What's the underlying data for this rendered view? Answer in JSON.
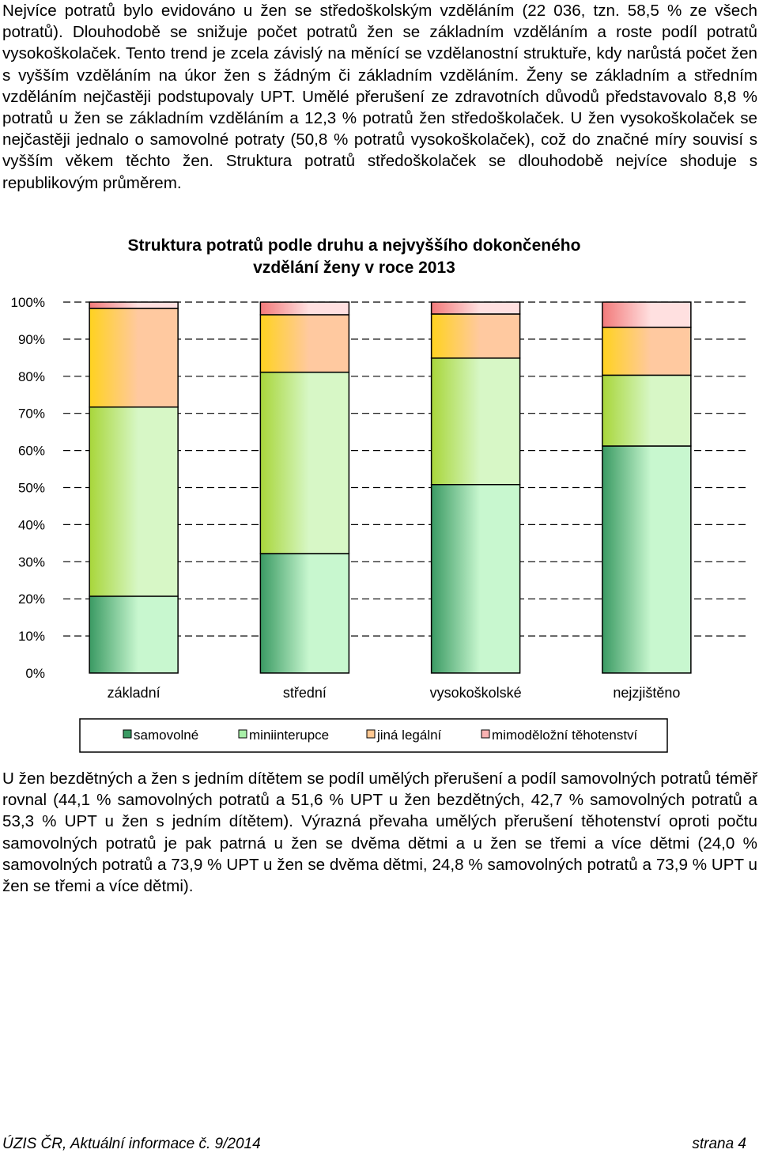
{
  "paragraphs": {
    "top": "Nejvíce potratů bylo evidováno u žen se středoškolským vzděláním (22 036, tzn. 58,5 % ze všech potratů). Dlouhodobě se snižuje počet potratů žen se základním vzděláním a roste podíl potratů vysokoškolaček. Tento trend je zcela závislý na měnící se vzdělanostní struktuře, kdy narůstá počet žen s vyšším vzděláním na úkor žen s žádným či základním vzděláním. Ženy se základním a středním vzděláním nejčastěji podstupovaly UPT. Umělé přerušení ze zdravotních důvodů představovalo 8,8 % potratů u žen se základním vzděláním a 12,3 % potratů žen středoškolaček. U žen vysokoškolaček se nejčastěji jednalo o samovolné potraty (50,8 % potratů vysokoškolaček), což do značné míry souvisí s vyšším věkem těchto žen. Struktura potratů středoškolaček se dlouhodobě nejvíce shoduje s republikovým průměrem.",
    "bottom": "U žen bezdětných a žen s jedním dítětem se podíl umělých přerušení a podíl samovolných potratů téměř rovnal (44,1 % samovolných potratů a 51,6 % UPT u žen bezdětných, 42,7 % samovolných potratů a 53,3 % UPT u žen s jedním dítětem). Výrazná převaha umělých přerušení těhotenství oproti počtu samovolných potratů je pak patrná u žen se dvěma dětmi a u žen se třemi a více dětmi (24,0 % samovolných potratů a 73,9 % UPT u žen se dvěma dětmi, 24,8 % samovolných potratů a 73,9 % UPT u žen se třemi a více dětmi)."
  },
  "chart_data": {
    "type": "bar",
    "stacked": true,
    "title_lines": [
      "Struktura potratů podle druhu a nejvyššího dokončeného",
      "vzdělání ženy v roce 2013"
    ],
    "categories": [
      "základní",
      "střední",
      "vysokoškolské",
      "nejzjištěno"
    ],
    "ylim": [
      0,
      100
    ],
    "y_ticks": [
      "0%",
      "10%",
      "20%",
      "30%",
      "40%",
      "50%",
      "60%",
      "70%",
      "80%",
      "90%",
      "100%"
    ],
    "grid": "dashed horizontal",
    "legend_position": "bottom",
    "series": [
      {
        "name": "samovolné",
        "values": [
          20.7,
          32.2,
          50.8,
          61.2
        ],
        "colors": [
          "#3a9a63",
          "#c8f7cf"
        ],
        "swatch": "#3a9a63"
      },
      {
        "name": "miniinterupce",
        "values": [
          51.0,
          48.9,
          34.1,
          19.1
        ],
        "colors": [
          "#a8d63a",
          "#d7f7c6"
        ],
        "swatch": "#a8f0a8"
      },
      {
        "name": "jiná legální",
        "values": [
          26.6,
          15.5,
          11.9,
          12.9
        ],
        "colors": [
          "#ffd21f",
          "#ffc9a0"
        ],
        "swatch": "#ffc892"
      },
      {
        "name": "mimoděložní těhotenství",
        "values": [
          1.7,
          3.4,
          3.2,
          6.8
        ],
        "colors": [
          "#f27a7a",
          "#ffe0e0"
        ],
        "swatch": "#f9b2b2"
      }
    ]
  },
  "footer": {
    "left": "ÚZIS ČR, Aktuální informace č. 9/2014",
    "right": "strana 4"
  }
}
